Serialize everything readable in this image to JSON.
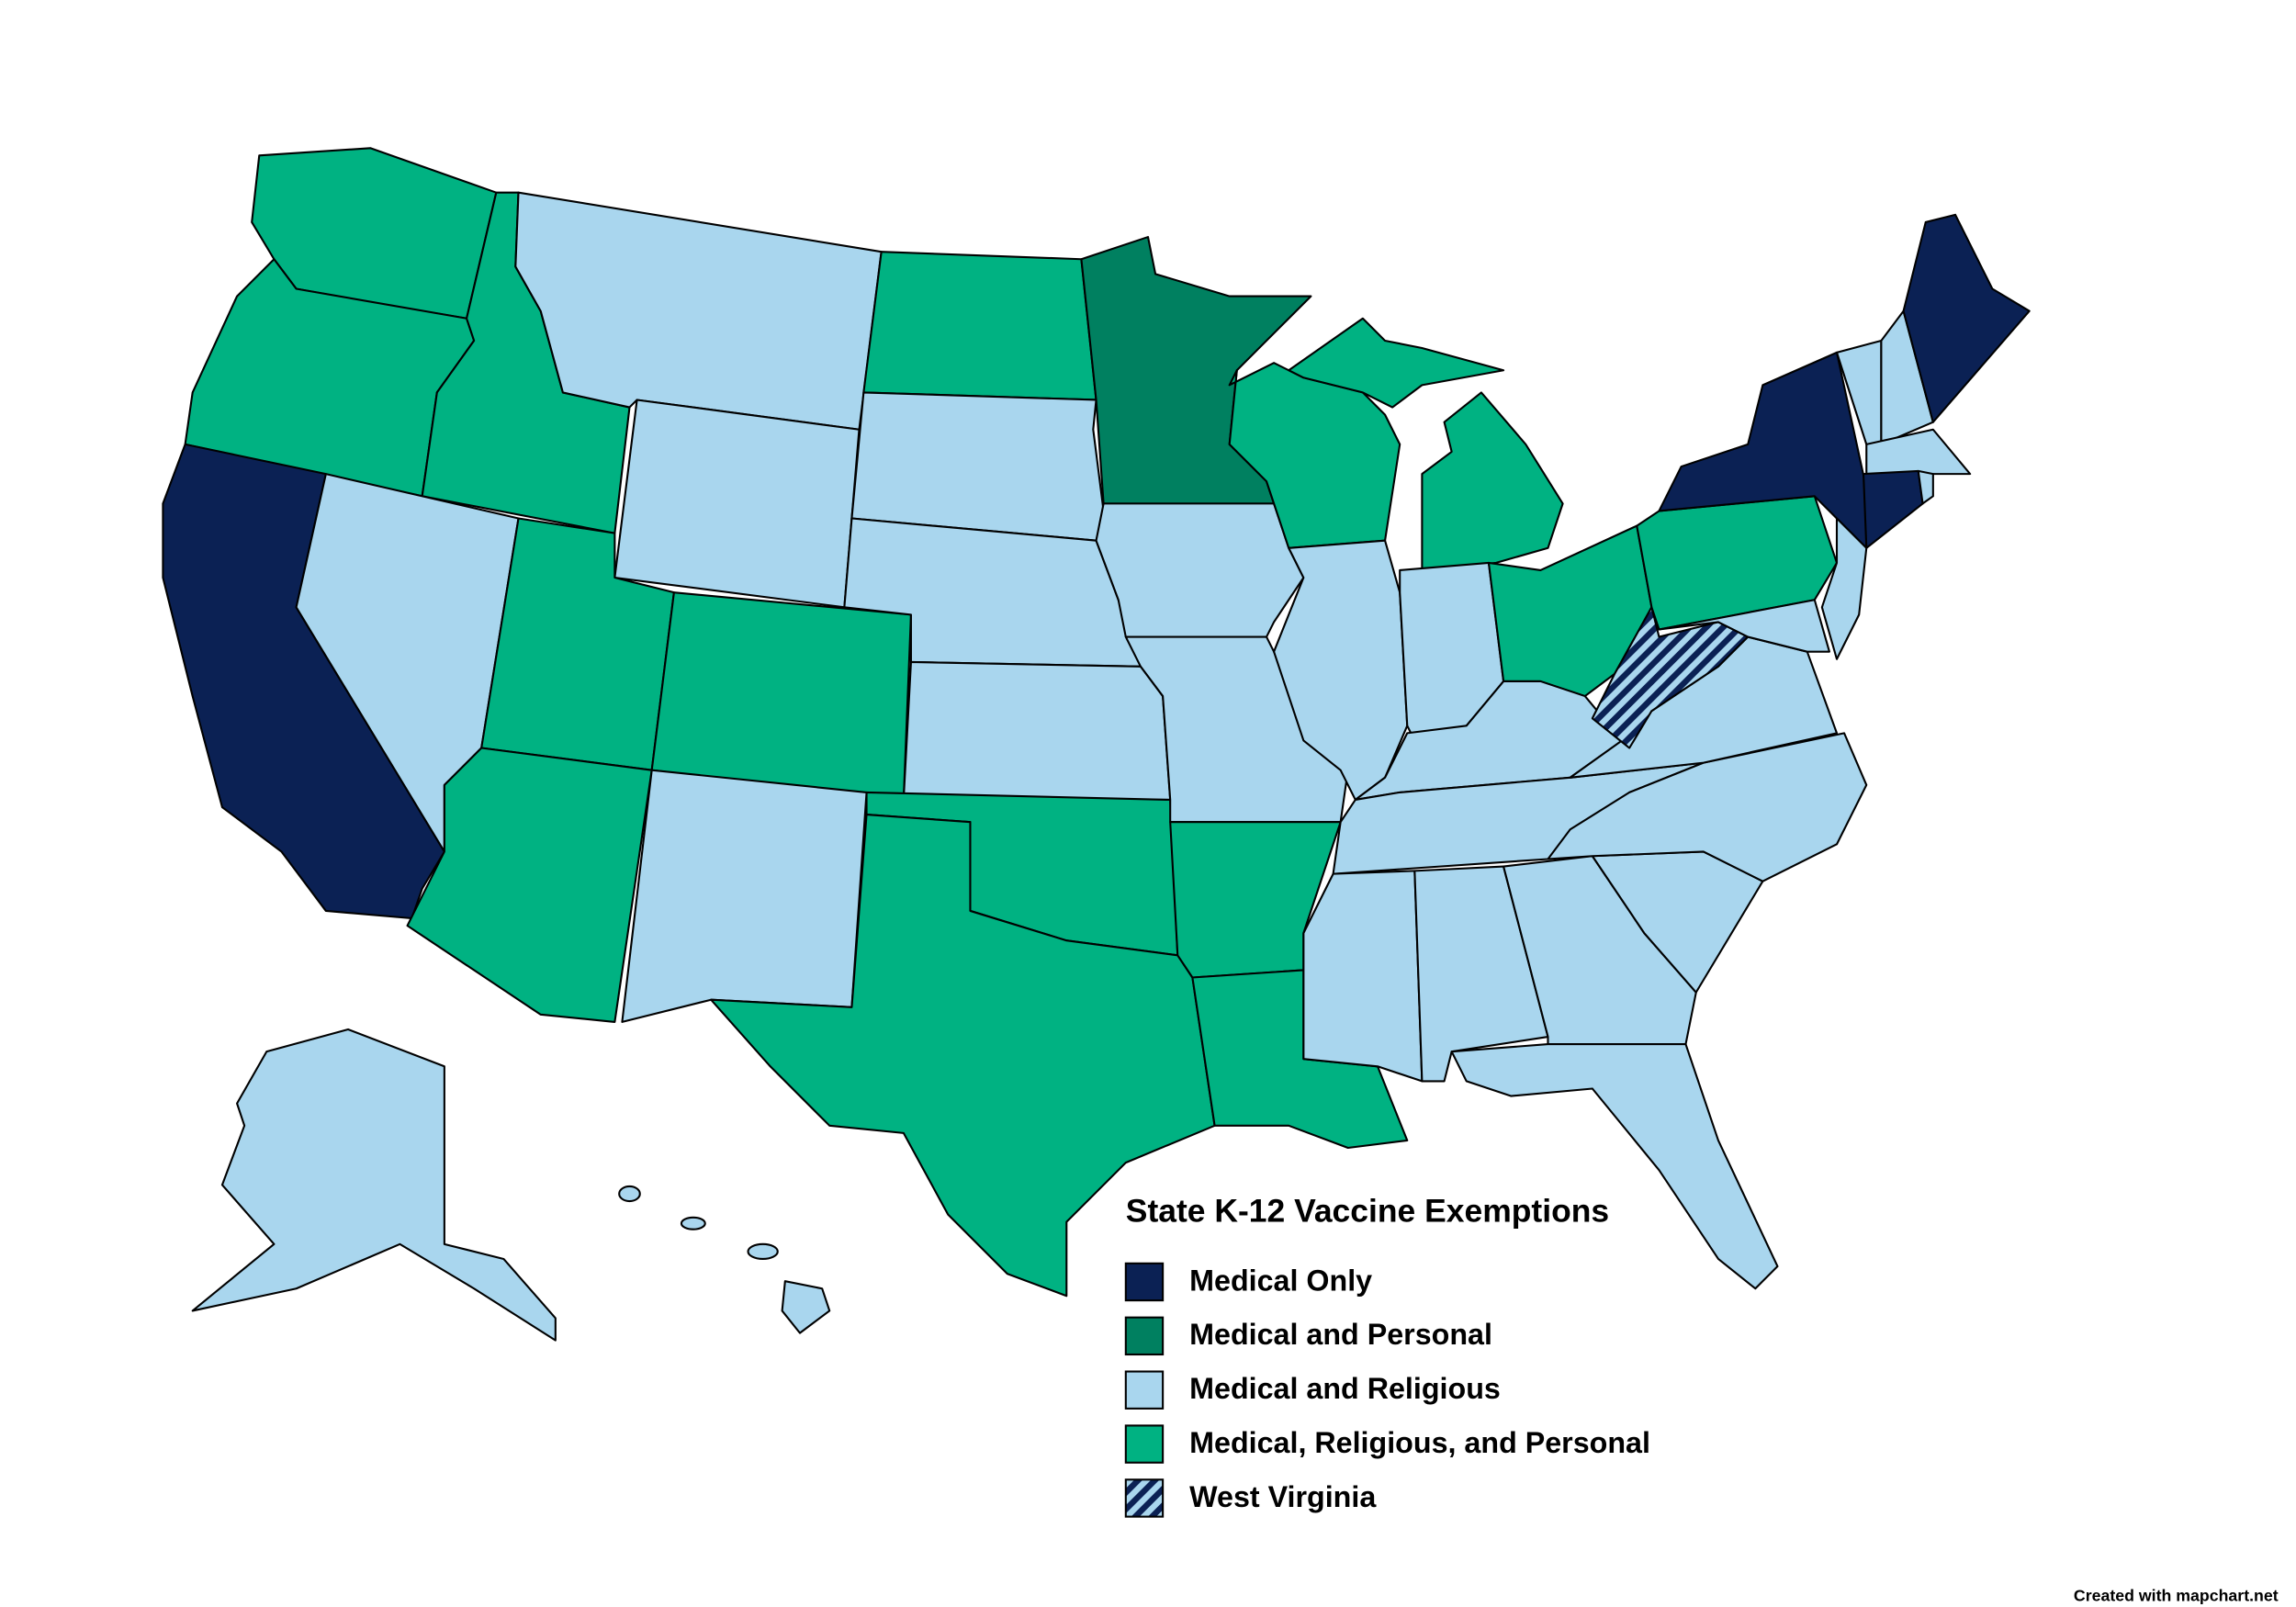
{
  "map": {
    "legend": {
      "title": "State K-12 Vaccine Exemptions",
      "items": [
        {
          "label": "Medical Only",
          "color": "#0b2154"
        },
        {
          "label": "Medical and Personal",
          "color": "#008060"
        },
        {
          "label": "Medical and Religious",
          "color": "#a9d6ee"
        },
        {
          "label": "Medical, Religious, and Personal",
          "color": "#00b282"
        },
        {
          "label": "West Virginia",
          "color": "#0b2154",
          "pattern": "stripes",
          "stripe_color": "#a9d6ee"
        }
      ]
    },
    "credit": "Created with mapchart.net"
  }
}
